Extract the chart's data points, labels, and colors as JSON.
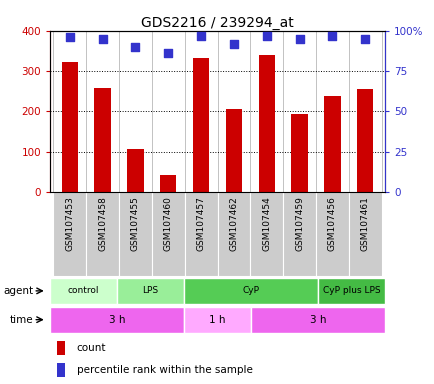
{
  "title": "GDS2216 / 239294_at",
  "samples": [
    "GSM107453",
    "GSM107458",
    "GSM107455",
    "GSM107460",
    "GSM107457",
    "GSM107462",
    "GSM107454",
    "GSM107459",
    "GSM107456",
    "GSM107461"
  ],
  "counts": [
    322,
    258,
    107,
    42,
    332,
    205,
    340,
    193,
    237,
    255
  ],
  "percentile": [
    96,
    95,
    90,
    86,
    97,
    92,
    97,
    95,
    97,
    95
  ],
  "bar_color": "#cc0000",
  "dot_color": "#3333cc",
  "ylim_left": [
    0,
    400
  ],
  "ylim_right": [
    0,
    100
  ],
  "yticks_left": [
    0,
    100,
    200,
    300,
    400
  ],
  "yticks_right": [
    0,
    25,
    50,
    75,
    100
  ],
  "ytick_labels_right": [
    "0",
    "25",
    "50",
    "75",
    "100%"
  ],
  "agent_groups": [
    {
      "label": "control",
      "start": 0,
      "end": 2,
      "color": "#ccffcc"
    },
    {
      "label": "LPS",
      "start": 2,
      "end": 4,
      "color": "#99ee99"
    },
    {
      "label": "CyP",
      "start": 4,
      "end": 8,
      "color": "#55cc55"
    },
    {
      "label": "CyP plus LPS",
      "start": 8,
      "end": 10,
      "color": "#44bb44"
    }
  ],
  "time_groups": [
    {
      "label": "3 h",
      "start": 0,
      "end": 4,
      "color": "#ee66ee"
    },
    {
      "label": "1 h",
      "start": 4,
      "end": 6,
      "color": "#ffaaff"
    },
    {
      "label": "3 h",
      "start": 6,
      "end": 10,
      "color": "#ee66ee"
    }
  ],
  "legend_count_label": "count",
  "legend_pct_label": "percentile rank within the sample",
  "agent_label": "agent",
  "time_label": "time",
  "sample_bg_color": "#cccccc",
  "plot_bg_color": "#ffffff",
  "bar_width": 0.5,
  "dot_size": 40
}
